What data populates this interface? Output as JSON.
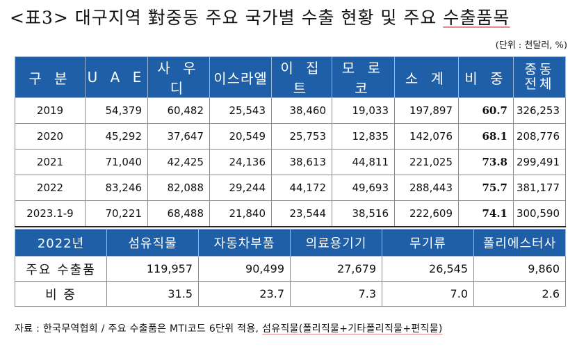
{
  "title": {
    "prefix": "<표3> 대구지역 對중동 주요 국가별 수출 현황 및 주요 ",
    "highlight": "수출품목"
  },
  "unit": "(단위 : 천달러, %)",
  "table1": {
    "headers": [
      "구 분",
      "U A E",
      "사 우 디",
      "이스라엘",
      "이 집 트",
      "모 로 코",
      "소 계",
      "비 중",
      "중동\n전체"
    ],
    "rows": [
      {
        "label": "2019",
        "uae": "54,379",
        "saudi": "60,482",
        "israel": "25,543",
        "egypt": "38,460",
        "morocco": "19,033",
        "subtotal": "197,897",
        "share": "60.7",
        "total": "326,253"
      },
      {
        "label": "2020",
        "uae": "45,292",
        "saudi": "37,647",
        "israel": "20,549",
        "egypt": "25,753",
        "morocco": "12,835",
        "subtotal": "142,076",
        "share": "68.1",
        "total": "208,776"
      },
      {
        "label": "2021",
        "uae": "71,040",
        "saudi": "42,425",
        "israel": "24,136",
        "egypt": "38,613",
        "morocco": "44,811",
        "subtotal": "221,025",
        "share": "73.8",
        "total": "299,491"
      },
      {
        "label": "2022",
        "uae": "83,246",
        "saudi": "82,088",
        "israel": "29,244",
        "egypt": "44,172",
        "morocco": "49,693",
        "subtotal": "288,443",
        "share": "75.7",
        "total": "381,177"
      },
      {
        "label": "2023.1-9",
        "uae": "70,221",
        "saudi": "68,488",
        "israel": "21,840",
        "egypt": "23,544",
        "morocco": "38,516",
        "subtotal": "222,609",
        "share": "74.1",
        "total": "300,590"
      }
    ]
  },
  "table2": {
    "headers": [
      "2022년",
      "섬유직물",
      "자동차부품",
      "의료용기기",
      "무기류",
      "폴리에스터사"
    ],
    "rows": [
      {
        "label": "주요 수출품",
        "values": [
          "119,957",
          "90,499",
          "27,679",
          "26,545",
          "9,860"
        ]
      },
      {
        "label": "비  중",
        "values": [
          "31.5",
          "23.7",
          "7.3",
          "7.0",
          "2.6"
        ]
      }
    ]
  },
  "footnote": {
    "prefix": "자료 : 한국무역협회 / 주요 수출품은 MTI코드 6단위 적용, ",
    "highlight": "섬유직물(폴리직물+기타폴리직물+편직물)"
  }
}
